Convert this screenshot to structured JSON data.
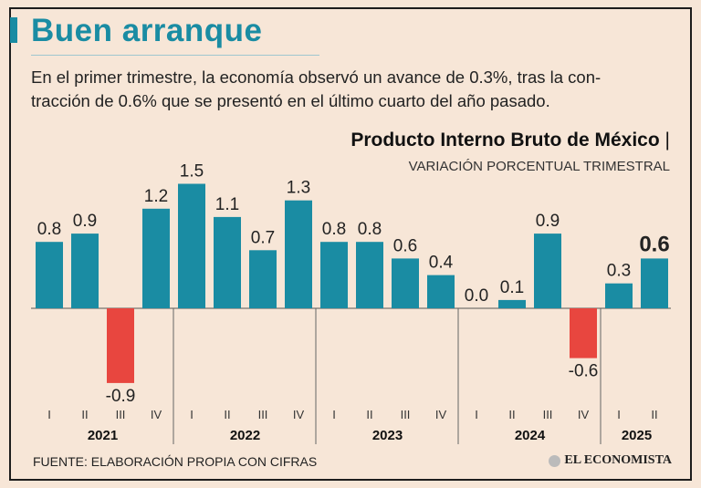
{
  "header": {
    "title": "Buen arranque",
    "subtitle_line1": "En el primer trimestre, la economía observó un avance de 0.3%, tras la con-",
    "subtitle_line2": "tracción de 0.6% que se presentó en el último cuarto del año pasado."
  },
  "footer": {
    "source": "FUENTE: ELABORACIÓN PROPIA CON CIFRAS",
    "logo": "EL ECONOMISTA"
  },
  "colors": {
    "positive": "#1a8ca3",
    "negative": "#e8463f",
    "background": "#f7e6d7",
    "text": "#222222"
  },
  "chart_data": {
    "type": "bar",
    "title": "Producto Interno Bruto de México",
    "subtitle": "VARIACIÓN PORCENTUAL TRIMESTRAL",
    "xlabel": "",
    "ylabel": "",
    "ylim": [
      -0.9,
      1.5
    ],
    "grid": false,
    "years": [
      {
        "label": "2021",
        "quarters": [
          "I",
          "II",
          "III",
          "IV"
        ]
      },
      {
        "label": "2022",
        "quarters": [
          "I",
          "II",
          "III",
          "IV"
        ]
      },
      {
        "label": "2023",
        "quarters": [
          "I",
          "II",
          "III",
          "IV"
        ]
      },
      {
        "label": "2024",
        "quarters": [
          "I",
          "II",
          "III",
          "IV"
        ]
      },
      {
        "label": "2025",
        "quarters": [
          "I",
          "II"
        ]
      }
    ],
    "values": [
      0.8,
      0.9,
      -0.9,
      1.2,
      1.5,
      1.1,
      0.7,
      1.3,
      0.8,
      0.8,
      0.6,
      0.4,
      0.0,
      0.1,
      0.9,
      -0.6,
      0.3,
      0.6
    ],
    "value_labels": [
      "0.8",
      "0.9",
      "-0.9",
      "1.2",
      "1.5",
      "1.1",
      "0.7",
      "1.3",
      "0.8",
      "0.8",
      "0.6",
      "0.4",
      "0.0",
      "0.1",
      "0.9",
      "-0.6",
      "0.3",
      "0.6"
    ],
    "highlight_last": true
  }
}
